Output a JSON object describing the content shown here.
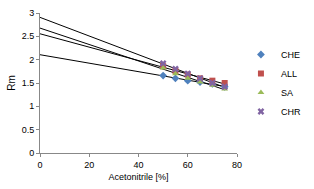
{
  "chart_data": {
    "type": "scatter",
    "x_label": "Acetonitrile [%]",
    "y_label": "Rm",
    "x": [
      50,
      55,
      60,
      65,
      70,
      75
    ],
    "series": [
      {
        "name": "CHE",
        "color": "#4f81bd",
        "marker": "diamond",
        "line_style": "trendline",
        "values": [
          1.66,
          1.6,
          1.55,
          1.52,
          1.48,
          1.42
        ]
      },
      {
        "name": "ALL",
        "color": "#c0504d",
        "marker": "square",
        "line_style": "trendline",
        "values": [
          1.86,
          1.76,
          1.68,
          1.6,
          1.55,
          1.5
        ]
      },
      {
        "name": "SA",
        "color": "#9bbb59",
        "marker": "triangle-up",
        "line_style": "trendline",
        "values": [
          1.82,
          1.7,
          1.6,
          1.52,
          1.45,
          1.37
        ]
      },
      {
        "name": "CHR",
        "color": "#8064a2",
        "marker": "x",
        "line_style": "trendline",
        "values": [
          1.92,
          1.8,
          1.7,
          1.6,
          1.5,
          1.42
        ]
      }
    ],
    "xlim": [
      0,
      80
    ],
    "xticks": [
      0,
      20,
      40,
      60,
      80
    ],
    "ylim": [
      0,
      3
    ],
    "yticks": [
      0,
      0.5,
      1,
      1.5,
      2,
      2.5,
      3
    ],
    "grid": false,
    "legend": "right"
  }
}
